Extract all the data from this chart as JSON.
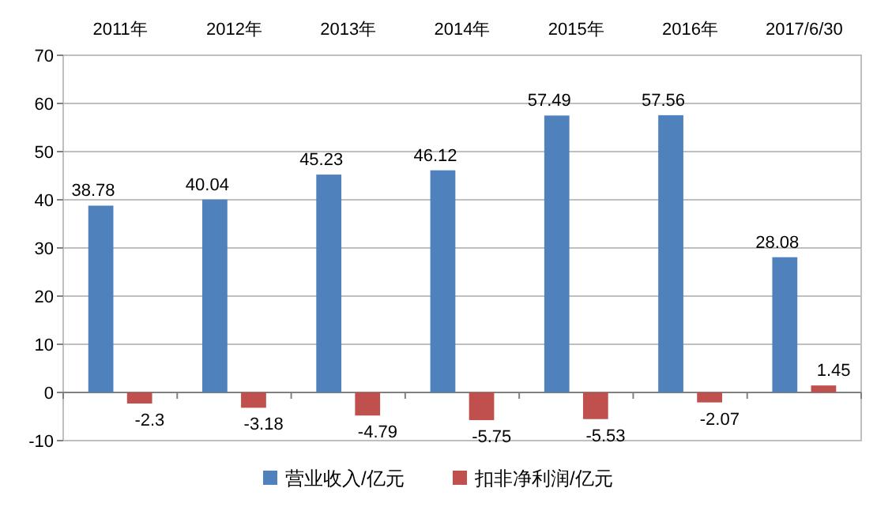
{
  "chart_data": {
    "type": "bar",
    "categories": [
      "2011年",
      "2012年",
      "2013年",
      "2014年",
      "2015年",
      "2016年",
      "2017/6/30"
    ],
    "series": [
      {
        "name": "营业收入/亿元",
        "color": "#4f81bd",
        "values": [
          38.78,
          40.04,
          45.23,
          46.12,
          57.49,
          57.56,
          28.08
        ]
      },
      {
        "name": "扣非净利润/亿元",
        "color": "#c0504d",
        "values": [
          -2.3,
          -3.18,
          -4.79,
          -5.75,
          -5.53,
          -2.07,
          1.45
        ]
      }
    ],
    "ylim": [
      -10,
      70
    ],
    "yticks": [
      -10,
      0,
      10,
      20,
      30,
      40,
      50,
      60,
      70
    ],
    "grid": "y",
    "legend": "bottom",
    "data_labels": true
  }
}
